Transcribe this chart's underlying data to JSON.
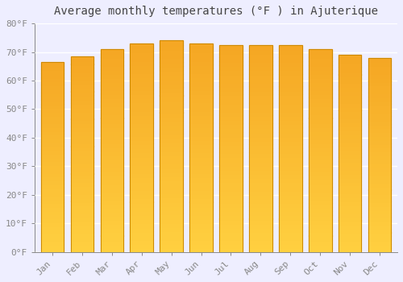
{
  "title": "Average monthly temperatures (°F ) in Ajuterique",
  "months": [
    "Jan",
    "Feb",
    "Mar",
    "Apr",
    "May",
    "Jun",
    "Jul",
    "Aug",
    "Sep",
    "Oct",
    "Nov",
    "Dec"
  ],
  "values": [
    66.5,
    68.5,
    71.0,
    73.0,
    74.0,
    73.0,
    72.5,
    72.5,
    72.5,
    71.0,
    69.0,
    68.0
  ],
  "bar_color_top": "#F5A623",
  "bar_color_bottom": "#FFD040",
  "bar_edge_color": "#CC8800",
  "background_color": "#EEEEFF",
  "grid_color": "#FFFFFF",
  "ylim": [
    0,
    80
  ],
  "yticks": [
    0,
    10,
    20,
    30,
    40,
    50,
    60,
    70,
    80
  ],
  "ytick_labels": [
    "0°F",
    "10°F",
    "20°F",
    "30°F",
    "40°F",
    "50°F",
    "60°F",
    "70°F",
    "80°F"
  ],
  "title_fontsize": 10,
  "tick_fontsize": 8,
  "title_color": "#444444",
  "tick_color": "#888888",
  "font_family": "monospace"
}
